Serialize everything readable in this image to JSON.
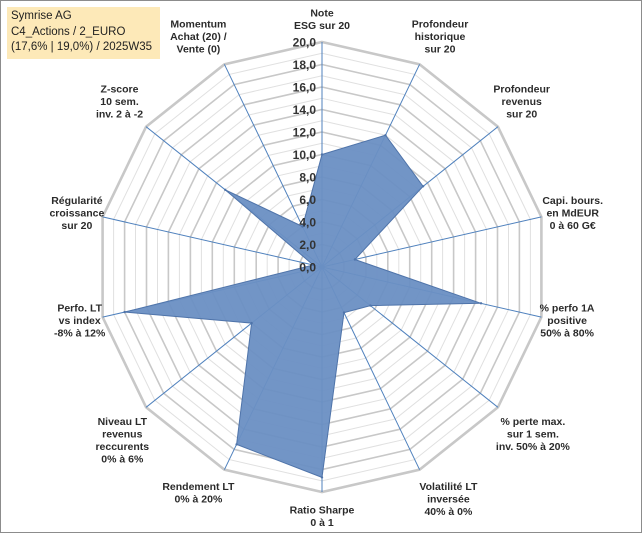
{
  "header": {
    "line1": "Symrise AG",
    "line2": "C4_Actions / 2_EURO",
    "line3": "(17,6% | 19,0%) / 2025W35"
  },
  "chart_data": {
    "type": "radar",
    "r_max": 20,
    "r_ticks": [
      "0,0",
      "2,0",
      "4,0",
      "6,0",
      "8,0",
      "10,0",
      "12,0",
      "14,0",
      "16,0",
      "18,0",
      "20,0"
    ],
    "grid": true,
    "fill_color": "#6a8fc3",
    "stroke_color": "#4f74aa",
    "axes": [
      {
        "label": [
          "Note",
          "ESG sur 20"
        ],
        "value": 10
      },
      {
        "label": [
          "Profondeur",
          "historique",
          "sur 20"
        ],
        "value": 13
      },
      {
        "label": [
          "Profondeur",
          "revenus",
          "sur 20"
        ],
        "value": 11.5
      },
      {
        "label": [
          "Capi. bours.",
          "en MdEUR",
          "0 à 60 G€"
        ],
        "value": 3
      },
      {
        "label": [
          "% perfo 1A",
          "positive",
          "50% à 80%"
        ],
        "value": 14.5
      },
      {
        "label": [
          "% perte max.",
          "sur 1 sem.",
          "inv. 50% à 20%"
        ],
        "value": 5.5
      },
      {
        "label": [
          "Volatilité LT",
          "inversée",
          "40% à 0%"
        ],
        "value": 4.5
      },
      {
        "label": [
          "Ratio Sharpe",
          "0 à 1"
        ],
        "value": 18.7
      },
      {
        "label": [
          "Rendement LT",
          "0% à 20%"
        ],
        "value": 17.5
      },
      {
        "label": [
          "Niveau LT",
          "revenus",
          "reccurents",
          "0% à 6%"
        ],
        "value": 8
      },
      {
        "label": [
          "Perfo. LT",
          "vs index",
          "-8% à 12%"
        ],
        "value": 18
      },
      {
        "label": [
          "Régularité",
          "croissance",
          "sur 20"
        ],
        "value": 0.8
      },
      {
        "label": [
          "Z-score",
          "10 sem.",
          "inv. 2 à -2"
        ],
        "value": 11
      },
      {
        "label": [
          "Momentum",
          "Achat (20) /",
          "Vente (0)"
        ],
        "value": 4
      }
    ]
  }
}
